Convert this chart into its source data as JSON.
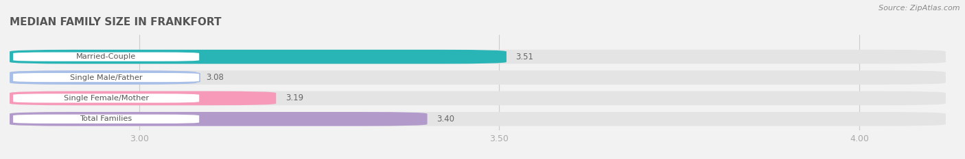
{
  "title": "MEDIAN FAMILY SIZE IN FRANKFORT",
  "source": "Source: ZipAtlas.com",
  "categories": [
    "Married-Couple",
    "Single Male/Father",
    "Single Female/Mother",
    "Total Families"
  ],
  "values": [
    3.51,
    3.08,
    3.19,
    3.4
  ],
  "bar_colors": [
    "#29b4b6",
    "#a8bfe8",
    "#f799b8",
    "#b29bcb"
  ],
  "xlim_left": 2.82,
  "xlim_right": 4.12,
  "xticks": [
    3.0,
    3.5,
    4.0
  ],
  "bar_height": 0.68,
  "background_color": "#f2f2f2",
  "bar_bg_color": "#e4e4e4",
  "label_box_color": "white",
  "title_color": "#555555",
  "source_color": "#888888",
  "tick_color": "#aaaaaa",
  "value_color": "#666666"
}
